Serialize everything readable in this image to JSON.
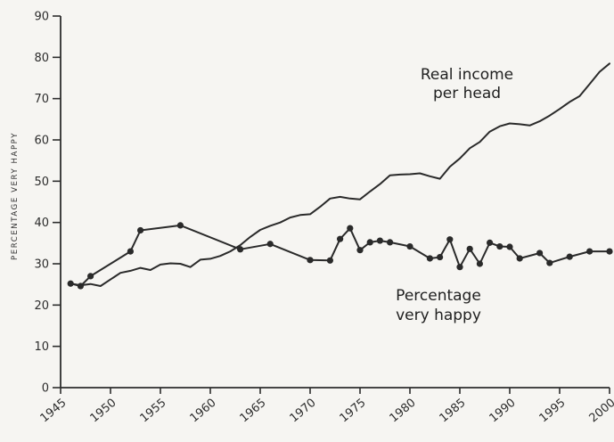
{
  "chart_data": {
    "type": "line",
    "ylabel": "PERCENTAGE VERY HAPPY",
    "xlabel": "",
    "ylim": [
      0,
      90
    ],
    "xlim": [
      1945,
      2000
    ],
    "yticks": [
      0,
      10,
      20,
      30,
      40,
      50,
      60,
      70,
      80,
      90
    ],
    "xticks": [
      1945,
      1950,
      1955,
      1960,
      1965,
      1970,
      1975,
      1980,
      1985,
      1990,
      1995,
      2000
    ],
    "grid": false,
    "annotations": [
      {
        "lines": [
          "Real income",
          "per head"
        ]
      },
      {
        "lines": [
          "Percentage",
          "very happy"
        ]
      }
    ],
    "series": [
      {
        "key": "real-income",
        "markers": false,
        "x": [
          1946,
          1947,
          1948,
          1949,
          1950,
          1951,
          1952,
          1953,
          1954,
          1955,
          1956,
          1957,
          1958,
          1959,
          1960,
          1961,
          1962,
          1963,
          1964,
          1965,
          1966,
          1967,
          1968,
          1969,
          1970,
          1971,
          1972,
          1973,
          1974,
          1975,
          1976,
          1977,
          1978,
          1979,
          1980,
          1981,
          1982,
          1983,
          1984,
          1985,
          1986,
          1987,
          1988,
          1989,
          1990,
          1991,
          1992,
          1993,
          1994,
          1995,
          1996,
          1997,
          1998,
          1999,
          2000
        ],
        "values": [
          25.2,
          24.8,
          25.1,
          24.6,
          26.2,
          27.8,
          28.3,
          29.0,
          28.5,
          29.8,
          30.1,
          30.0,
          29.2,
          31.0,
          31.2,
          31.9,
          33.0,
          34.5,
          36.5,
          38.2,
          39.2,
          40.0,
          41.2,
          41.8,
          42.0,
          43.8,
          45.8,
          46.2,
          45.8,
          45.6,
          47.5,
          49.3,
          51.4,
          51.6,
          51.7,
          51.9,
          51.2,
          50.6,
          53.5,
          55.5,
          58.0,
          59.5,
          62.0,
          63.3,
          64.0,
          63.8,
          63.5,
          64.5,
          65.9,
          67.5,
          69.2,
          70.6,
          73.5,
          76.5,
          78.5
        ]
      },
      {
        "key": "very-happy",
        "markers": true,
        "x": [
          1946,
          1947,
          1948,
          1952,
          1953,
          1957,
          1963,
          1966,
          1970,
          1972,
          1973,
          1974,
          1975,
          1976,
          1977,
          1978,
          1980,
          1982,
          1983,
          1984,
          1985,
          1986,
          1987,
          1988,
          1989,
          1990,
          1991,
          1993,
          1994,
          1996,
          1998,
          2000
        ],
        "values": [
          25.2,
          24.6,
          27.0,
          33.0,
          38.1,
          39.3,
          33.5,
          34.8,
          30.9,
          30.8,
          36.0,
          38.6,
          33.3,
          35.2,
          35.6,
          35.2,
          34.2,
          31.3,
          31.6,
          35.9,
          29.2,
          33.6,
          30.0,
          35.1,
          34.2,
          34.1,
          31.3,
          32.6,
          30.2,
          31.7,
          33.0,
          33.0
        ]
      }
    ]
  }
}
